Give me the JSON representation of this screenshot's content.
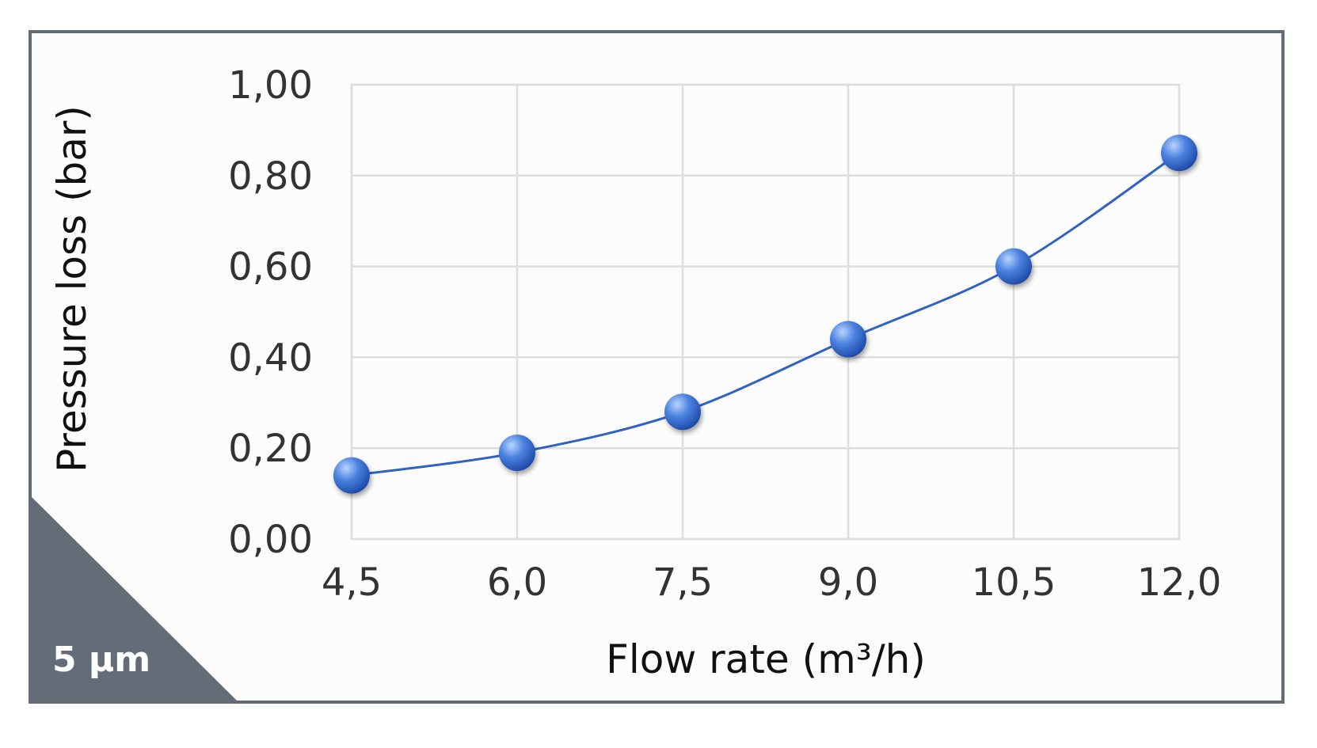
{
  "chart_data": {
    "type": "line",
    "title": "",
    "corner_label": "5 µm",
    "xlabel": "Flow rate (m³/h)",
    "ylabel": "Pressure loss (bar)",
    "categories": [
      "4,5",
      "6,0",
      "7,5",
      "9,0",
      "10,5",
      "12,0"
    ],
    "x": [
      4.5,
      6.0,
      7.5,
      9.0,
      10.5,
      12.0
    ],
    "y_ticks": [
      0.0,
      0.2,
      0.4,
      0.6,
      0.8,
      1.0
    ],
    "y_tick_labels": [
      "0,00",
      "0,20",
      "0,40",
      "0,60",
      "0,80",
      "1,00"
    ],
    "ylim": [
      0,
      1
    ],
    "grid": true,
    "legend": "none",
    "series": [
      {
        "values": [
          0.14,
          0.19,
          0.28,
          0.44,
          0.6,
          0.85
        ],
        "color": "#2f62c2"
      }
    ]
  }
}
